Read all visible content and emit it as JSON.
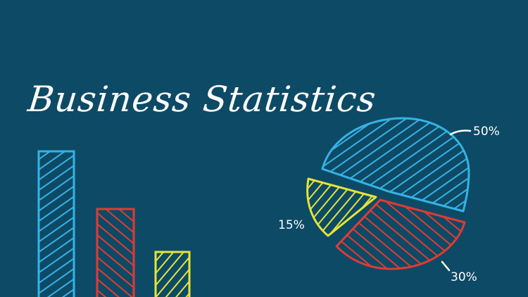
{
  "title": "Business Statistics",
  "colors": {
    "background": "#0d4a66",
    "blue": "#35b3e6",
    "red": "#e23a33",
    "yellow": "#e6e436",
    "white": "#ffffff"
  },
  "bar_chart": {
    "bars": [
      {
        "value": 3,
        "color": "blue"
      },
      {
        "value": 1.95,
        "color": "red"
      },
      {
        "value": 1,
        "color": "yellow"
      }
    ]
  },
  "pie_chart": {
    "slices": [
      {
        "label": "50%",
        "value": 50,
        "color": "blue"
      },
      {
        "label": "30%",
        "value": 30,
        "color": "red"
      },
      {
        "label": "15%",
        "value": 15,
        "color": "yellow"
      }
    ]
  }
}
